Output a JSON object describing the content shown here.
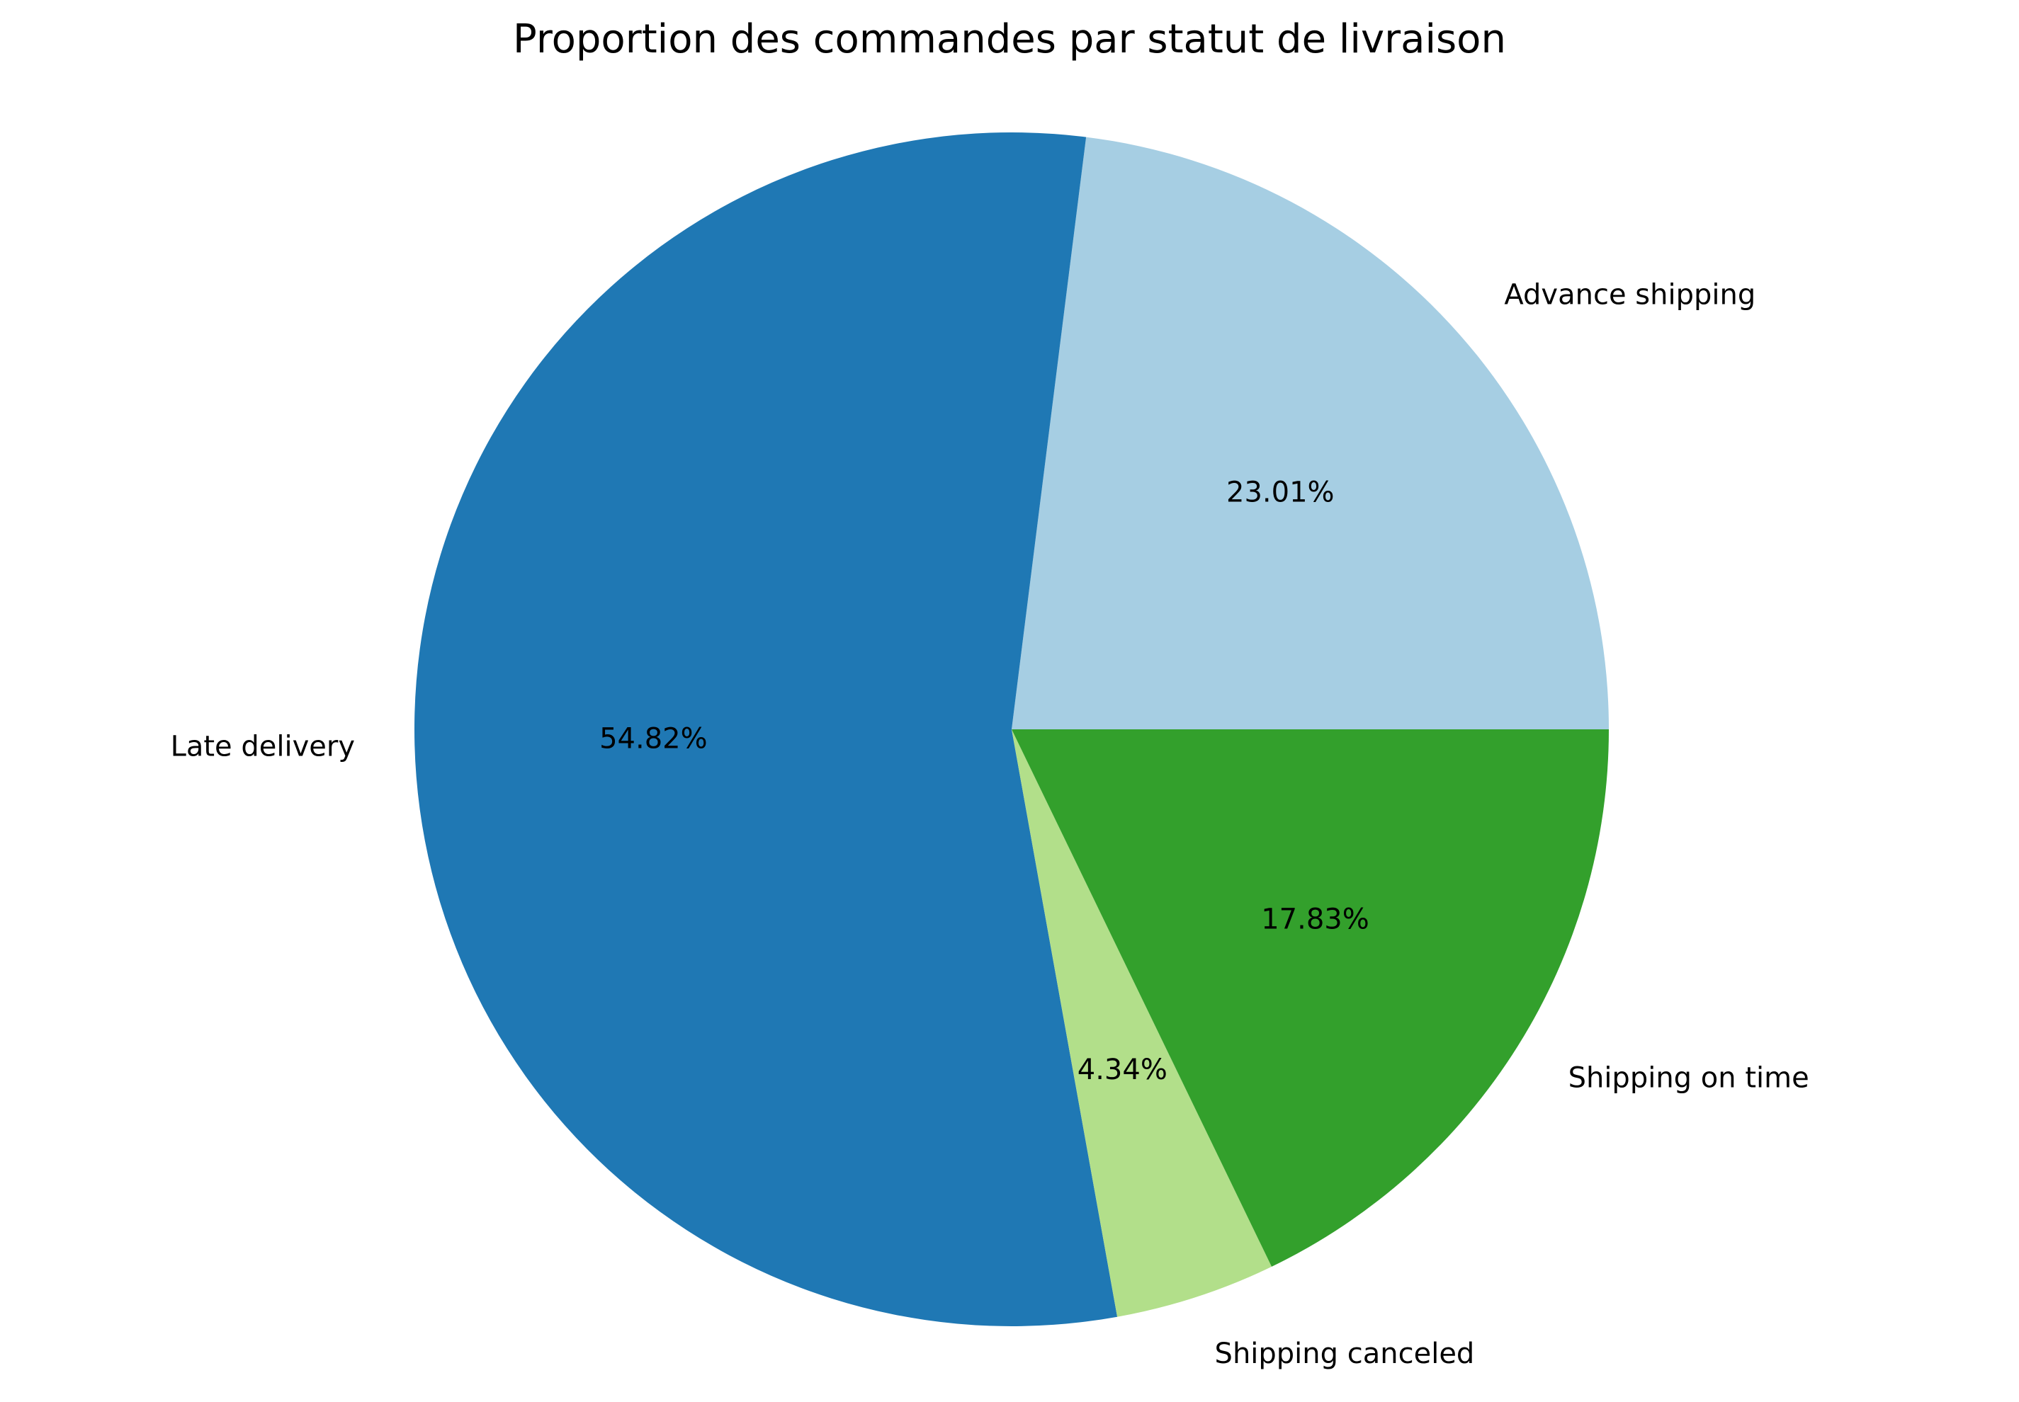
{
  "chart_data": {
    "type": "pie",
    "title": "Proportion des commandes par statut de livraison",
    "start_angle_deg": 0,
    "direction": "counterclockwise",
    "slices": [
      {
        "label": "Advance shipping",
        "value": 23.01,
        "pct_label": "23.01%",
        "color": "#a6cee3"
      },
      {
        "label": "Late delivery",
        "value": 54.82,
        "pct_label": "54.82%",
        "color": "#1f78b4"
      },
      {
        "label": "Shipping canceled",
        "value": 4.34,
        "pct_label": "4.34%",
        "color": "#b2df8a"
      },
      {
        "label": "Shipping on time",
        "value": 17.83,
        "pct_label": "17.83%",
        "color": "#33a02c"
      }
    ]
  }
}
